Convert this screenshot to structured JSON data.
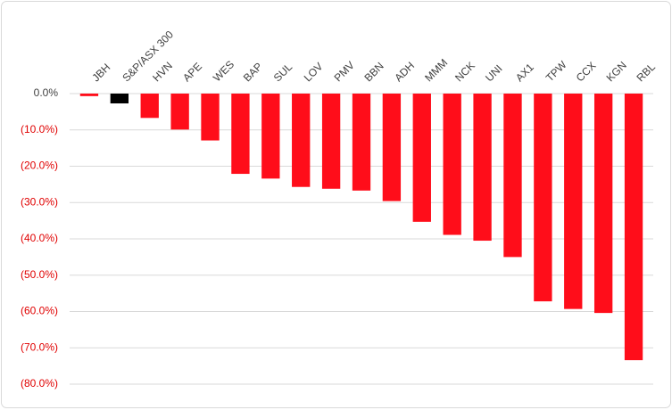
{
  "chart_data": {
    "type": "bar",
    "categories": [
      "JBH",
      "S&P/ASX 300",
      "HVN",
      "APE",
      "WES",
      "BAP",
      "SUL",
      "LOV",
      "PMV",
      "BBN",
      "ADH",
      "MMM",
      "NCK",
      "UNI",
      "AX1",
      "TPW",
      "CCX",
      "KGN",
      "RBL"
    ],
    "values": [
      -0.7,
      -2.7,
      -6.7,
      -9.9,
      -12.9,
      -22.1,
      -23.4,
      -25.7,
      -26.2,
      -26.7,
      -29.6,
      -35.3,
      -38.9,
      -40.5,
      -45.0,
      -57.2,
      -59.3,
      -60.4,
      -73.4
    ],
    "colors": [
      "#ff0d1a",
      "#000000",
      "#ff0d1a",
      "#ff0d1a",
      "#ff0d1a",
      "#ff0d1a",
      "#ff0d1a",
      "#ff0d1a",
      "#ff0d1a",
      "#ff0d1a",
      "#ff0d1a",
      "#ff0d1a",
      "#ff0d1a",
      "#ff0d1a",
      "#ff0d1a",
      "#ff0d1a",
      "#ff0d1a",
      "#ff0d1a",
      "#ff0d1a"
    ],
    "ylim": [
      -80,
      0
    ],
    "yticks": [
      {
        "value": 0,
        "label": "0.0%"
      },
      {
        "value": -10,
        "label": "(10.0%)"
      },
      {
        "value": -20,
        "label": "(20.0%)"
      },
      {
        "value": -30,
        "label": "(30.0%)"
      },
      {
        "value": -40,
        "label": "(40.0%)"
      },
      {
        "value": -50,
        "label": "(50.0%)"
      },
      {
        "value": -60,
        "label": "(60.0%)"
      },
      {
        "value": -70,
        "label": "(70.0%)"
      },
      {
        "value": -80,
        "label": "(80.0%)"
      }
    ],
    "grid": true
  }
}
